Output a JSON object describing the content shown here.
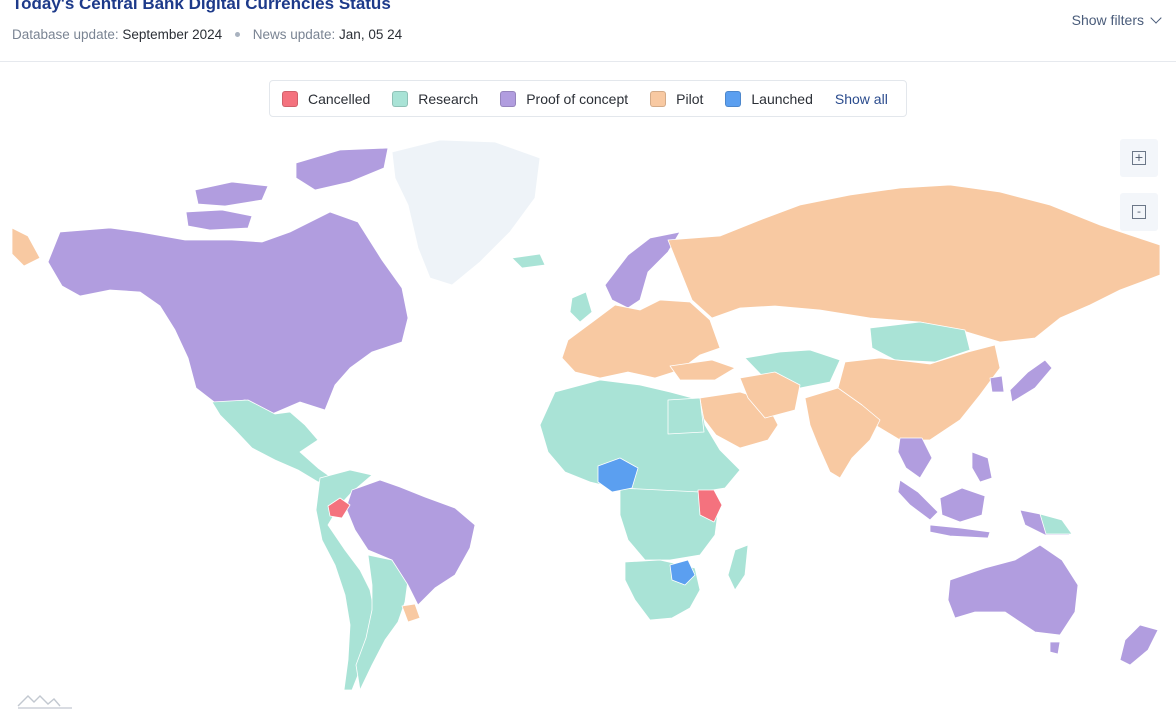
{
  "header": {
    "title": "Today's Central Bank Digital Currencies Status",
    "database_label": "Database update:",
    "database_value": "September 2024",
    "news_label": "News update:",
    "news_value": "Jan, 05 24",
    "filters_label": "Show filters"
  },
  "legend": {
    "items": [
      {
        "label": "Cancelled",
        "color": "#f4727e"
      },
      {
        "label": "Research",
        "color": "#a9e3d6"
      },
      {
        "label": "Proof of concept",
        "color": "#b19ddf"
      },
      {
        "label": "Pilot",
        "color": "#f8c9a2"
      },
      {
        "label": "Launched",
        "color": "#5b9ff0"
      }
    ],
    "show_all_label": "Show all"
  },
  "zoom": {
    "in_label": "+",
    "out_label": "-"
  },
  "map": {
    "no_data_color": "#eef3f8",
    "border_color": "#ffffff",
    "regions": [
      {
        "name": "north-america",
        "status": "Proof of concept"
      },
      {
        "name": "mexico-central-america",
        "status": "Research"
      },
      {
        "name": "brazil",
        "status": "Proof of concept"
      },
      {
        "name": "ecuador",
        "status": "Cancelled"
      },
      {
        "name": "argentina-chile",
        "status": "Research"
      },
      {
        "name": "uruguay",
        "status": "Pilot"
      },
      {
        "name": "greenland",
        "status": "none"
      },
      {
        "name": "scandinavia",
        "status": "Proof of concept"
      },
      {
        "name": "western-europe",
        "status": "Pilot"
      },
      {
        "name": "russia",
        "status": "Pilot"
      },
      {
        "name": "mongolia-kazakhstan",
        "status": "Research"
      },
      {
        "name": "china",
        "status": "Pilot"
      },
      {
        "name": "india",
        "status": "Pilot"
      },
      {
        "name": "saudi-arabia",
        "status": "Pilot"
      },
      {
        "name": "north-africa",
        "status": "Research"
      },
      {
        "name": "nigeria",
        "status": "Launched"
      },
      {
        "name": "kenya",
        "status": "Cancelled"
      },
      {
        "name": "zimbabwe",
        "status": "Launched"
      },
      {
        "name": "southern-africa",
        "status": "Research"
      },
      {
        "name": "madagascar",
        "status": "Research"
      },
      {
        "name": "southeast-asia",
        "status": "Proof of concept"
      },
      {
        "name": "japan",
        "status": "Proof of concept"
      },
      {
        "name": "australia",
        "status": "Proof of concept"
      },
      {
        "name": "new-zealand",
        "status": "Proof of concept"
      }
    ]
  }
}
